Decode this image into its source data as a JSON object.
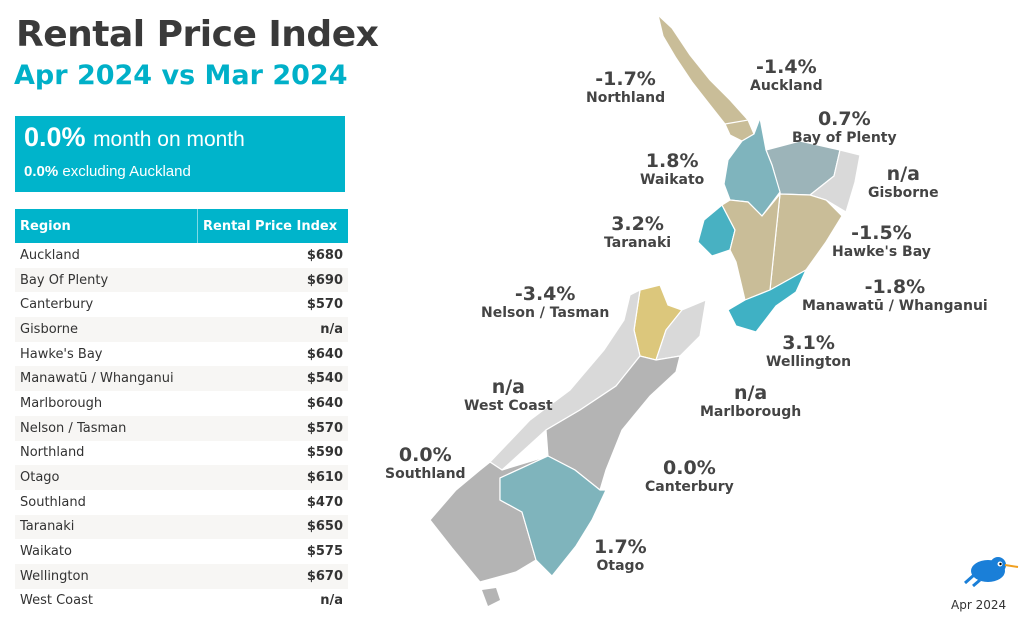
{
  "title": "Rental Price Index",
  "subtitle": "Apr 2024 vs Mar 2024",
  "kpi": {
    "value": "0.0%",
    "value_label": "month on month",
    "ex_value": "0.0%",
    "ex_label": "excluding Auckland"
  },
  "table": {
    "headers": [
      "Region",
      "Rental Price Index"
    ],
    "rows": [
      [
        "Auckland",
        "$680"
      ],
      [
        "Bay Of Plenty",
        "$690"
      ],
      [
        "Canterbury",
        "$570"
      ],
      [
        "Gisborne",
        "n/a"
      ],
      [
        "Hawke's Bay",
        "$640"
      ],
      [
        "Manawatū / Whanganui",
        "$540"
      ],
      [
        "Marlborough",
        "$640"
      ],
      [
        "Nelson / Tasman",
        "$570"
      ],
      [
        "Northland",
        "$590"
      ],
      [
        "Otago",
        "$610"
      ],
      [
        "Southland",
        "$470"
      ],
      [
        "Taranaki",
        "$650"
      ],
      [
        "Waikato",
        "$575"
      ],
      [
        "Wellington",
        "$670"
      ],
      [
        "West Coast",
        "n/a"
      ]
    ]
  },
  "map": {
    "regions": [
      {
        "name": "Northland",
        "change": "-1.7%",
        "color": "#c9bd98"
      },
      {
        "name": "Auckland",
        "change": "-1.4%",
        "color": "#c9bd98"
      },
      {
        "name": "Bay of Plenty",
        "change": "0.7%",
        "color": "#9cb4b9"
      },
      {
        "name": "Waikato",
        "change": "1.8%",
        "color": "#7fb4bd"
      },
      {
        "name": "Gisborne",
        "change": "n/a",
        "color": "#d9d9d9"
      },
      {
        "name": "Taranaki",
        "change": "3.2%",
        "color": "#48b1c2"
      },
      {
        "name": "Hawke's Bay",
        "change": "-1.5%",
        "color": "#c9bd98"
      },
      {
        "name": "Nelson / Tasman",
        "change": "-3.4%",
        "color": "#dcc77c"
      },
      {
        "name": "Manawatū / Whanganui",
        "change": "-1.8%",
        "color": "#c9bd98"
      },
      {
        "name": "Wellington",
        "change": "3.1%",
        "color": "#3fb1c4"
      },
      {
        "name": "West Coast",
        "change": "n/a",
        "color": "#d9d9d9"
      },
      {
        "name": "Marlborough",
        "change": "n/a",
        "color": "#d9d9d9"
      },
      {
        "name": "Southland",
        "change": "0.0%",
        "color": "#b4b4b4"
      },
      {
        "name": "Canterbury",
        "change": "0.0%",
        "color": "#b4b4b4"
      },
      {
        "name": "Otago",
        "change": "1.7%",
        "color": "#7fb4bc"
      }
    ]
  },
  "footer": {
    "date": "Apr 2024",
    "logo": "kiwi-bird-logo"
  }
}
